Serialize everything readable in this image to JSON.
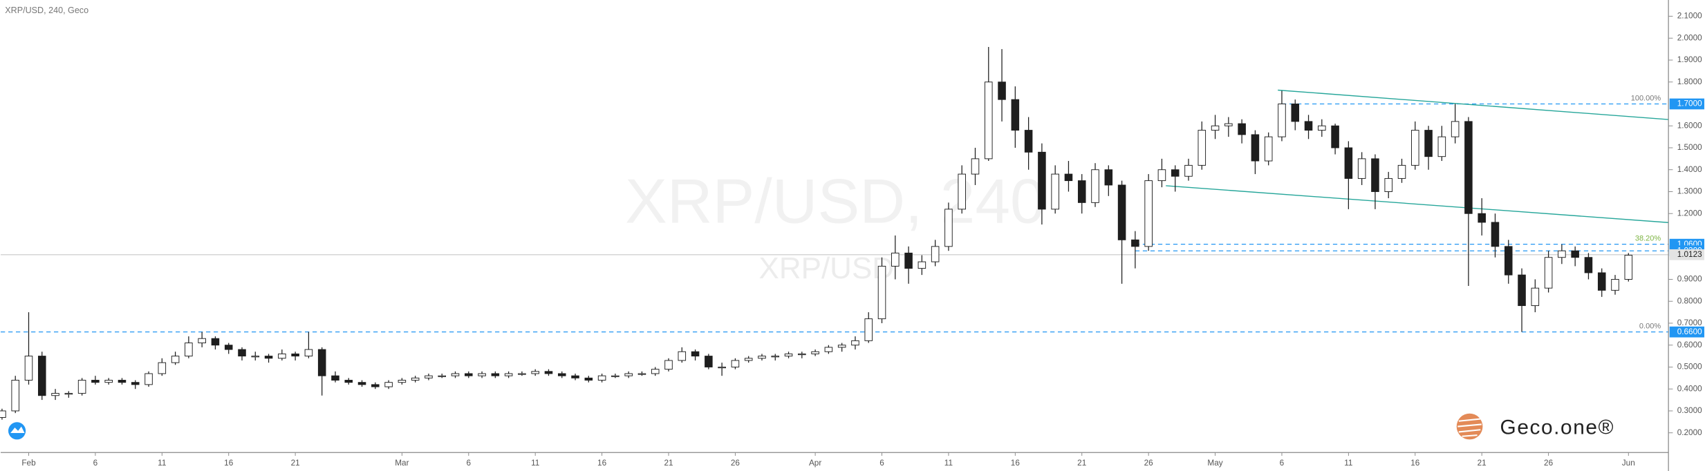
{
  "chart_data": {
    "type": "candlestick",
    "title": "XRP/USD, 240, Geco",
    "watermark": "XRP/USD, 240",
    "watermark_small": "XRP/USD",
    "brand": "Geco.one®",
    "up_color": "#ffffff",
    "down_color": "#1e1e1e",
    "wick_color": "#1e1e1e",
    "level_color": "#2196f3",
    "channel_color": "#26a69a",
    "xlim": [
      -2.1,
      123
    ],
    "ylim": [
      0.11,
      2.174
    ],
    "xticks": [
      {
        "value": 0,
        "label": "Feb"
      },
      {
        "value": 5,
        "label": "6"
      },
      {
        "value": 10,
        "label": "11"
      },
      {
        "value": 15,
        "label": "16"
      },
      {
        "value": 20,
        "label": "21"
      },
      {
        "value": 28,
        "label": "Mar"
      },
      {
        "value": 33,
        "label": "6"
      },
      {
        "value": 38,
        "label": "11"
      },
      {
        "value": 43,
        "label": "16"
      },
      {
        "value": 48,
        "label": "21"
      },
      {
        "value": 53,
        "label": "26"
      },
      {
        "value": 59,
        "label": "Apr"
      },
      {
        "value": 64,
        "label": "6"
      },
      {
        "value": 69,
        "label": "11"
      },
      {
        "value": 74,
        "label": "16"
      },
      {
        "value": 79,
        "label": "21"
      },
      {
        "value": 84,
        "label": "26"
      },
      {
        "value": 89,
        "label": "May"
      },
      {
        "value": 94,
        "label": "6"
      },
      {
        "value": 99,
        "label": "11"
      },
      {
        "value": 104,
        "label": "16"
      },
      {
        "value": 109,
        "label": "21"
      },
      {
        "value": 114,
        "label": "26"
      },
      {
        "value": 120,
        "label": "Jun"
      }
    ],
    "yticks": [
      {
        "value": 2.1,
        "label": "2.1000"
      },
      {
        "value": 2.0,
        "label": "2.0000"
      },
      {
        "value": 1.9,
        "label": "1.9000"
      },
      {
        "value": 1.8,
        "label": "1.8000"
      },
      {
        "value": 1.6,
        "label": "1.6000"
      },
      {
        "value": 1.5,
        "label": "1.5000"
      },
      {
        "value": 1.4,
        "label": "1.4000"
      },
      {
        "value": 1.3,
        "label": "1.3000"
      },
      {
        "value": 1.2,
        "label": "1.2000"
      },
      {
        "value": 0.9,
        "label": "0.9000"
      },
      {
        "value": 0.8,
        "label": "0.8000"
      },
      {
        "value": 0.7,
        "label": "0.7000"
      },
      {
        "value": 0.6,
        "label": "0.6000"
      },
      {
        "value": 0.5,
        "label": "0.5000"
      },
      {
        "value": 0.4,
        "label": "0.4000"
      },
      {
        "value": 0.3,
        "label": "0.3000"
      },
      {
        "value": 0.2,
        "label": "0.2000"
      }
    ],
    "current_price": {
      "value": 1.0123,
      "label": "1.0123"
    },
    "levels": [
      {
        "value": 1.7,
        "label": "1.7000",
        "fib": "100.00%",
        "from": 94
      },
      {
        "value": 1.06,
        "label": "1.0600",
        "fib": "38.20%",
        "from": 83
      },
      {
        "value": 1.03,
        "label": "1.0300",
        "from": 83
      },
      {
        "value": 0.66,
        "label": "0.6600",
        "fib": "0.00%",
        "from": -2.1
      }
    ],
    "channel": [
      {
        "x": [
          93.7,
          123
        ],
        "y": [
          1.763,
          1.629
        ]
      },
      {
        "x": [
          85.3,
          123
        ],
        "y": [
          1.327,
          1.159
        ]
      }
    ],
    "x": [
      -2,
      -1,
      0,
      1,
      2,
      3,
      4,
      5,
      6,
      7,
      8,
      9,
      10,
      11,
      12,
      13,
      14,
      15,
      16,
      17,
      18,
      19,
      20,
      21,
      22,
      23,
      24,
      25,
      26,
      27,
      28,
      29,
      30,
      31,
      32,
      33,
      34,
      35,
      36,
      37,
      38,
      39,
      40,
      41,
      42,
      43,
      44,
      45,
      46,
      47,
      48,
      49,
      50,
      51,
      52,
      53,
      54,
      55,
      56,
      57,
      58,
      59,
      60,
      61,
      62,
      63,
      64,
      65,
      66,
      67,
      68,
      69,
      70,
      71,
      72,
      73,
      74,
      75,
      76,
      77,
      78,
      79,
      80,
      81,
      82,
      83,
      84,
      85,
      86,
      87,
      88,
      89,
      90,
      91,
      92,
      93,
      94,
      95,
      96,
      97,
      98,
      99,
      100,
      101,
      102,
      103,
      104,
      105,
      106,
      107,
      108,
      109,
      110,
      111,
      112,
      113,
      114,
      115,
      116,
      117,
      118,
      119,
      120
    ],
    "ohlc": [
      [
        0.27,
        0.31,
        0.26,
        0.3
      ],
      [
        0.3,
        0.46,
        0.29,
        0.44
      ],
      [
        0.44,
        0.75,
        0.42,
        0.55
      ],
      [
        0.55,
        0.57,
        0.35,
        0.37
      ],
      [
        0.37,
        0.4,
        0.35,
        0.38
      ],
      [
        0.38,
        0.39,
        0.36,
        0.38
      ],
      [
        0.38,
        0.45,
        0.37,
        0.44
      ],
      [
        0.44,
        0.46,
        0.42,
        0.43
      ],
      [
        0.43,
        0.45,
        0.42,
        0.44
      ],
      [
        0.44,
        0.45,
        0.42,
        0.43
      ],
      [
        0.43,
        0.44,
        0.4,
        0.42
      ],
      [
        0.42,
        0.48,
        0.41,
        0.47
      ],
      [
        0.47,
        0.54,
        0.46,
        0.52
      ],
      [
        0.52,
        0.57,
        0.51,
        0.55
      ],
      [
        0.55,
        0.64,
        0.54,
        0.61
      ],
      [
        0.61,
        0.66,
        0.59,
        0.63
      ],
      [
        0.63,
        0.64,
        0.58,
        0.6
      ],
      [
        0.6,
        0.61,
        0.56,
        0.58
      ],
      [
        0.58,
        0.59,
        0.53,
        0.55
      ],
      [
        0.55,
        0.57,
        0.53,
        0.55
      ],
      [
        0.55,
        0.56,
        0.52,
        0.54
      ],
      [
        0.54,
        0.58,
        0.53,
        0.56
      ],
      [
        0.56,
        0.57,
        0.53,
        0.55
      ],
      [
        0.55,
        0.66,
        0.54,
        0.58
      ],
      [
        0.58,
        0.59,
        0.37,
        0.46
      ],
      [
        0.46,
        0.48,
        0.43,
        0.44
      ],
      [
        0.44,
        0.45,
        0.42,
        0.43
      ],
      [
        0.43,
        0.44,
        0.41,
        0.42
      ],
      [
        0.42,
        0.43,
        0.4,
        0.41
      ],
      [
        0.41,
        0.44,
        0.4,
        0.43
      ],
      [
        0.43,
        0.45,
        0.42,
        0.44
      ],
      [
        0.44,
        0.46,
        0.43,
        0.45
      ],
      [
        0.45,
        0.47,
        0.44,
        0.46
      ],
      [
        0.46,
        0.47,
        0.45,
        0.46
      ],
      [
        0.46,
        0.48,
        0.45,
        0.47
      ],
      [
        0.47,
        0.48,
        0.45,
        0.46
      ],
      [
        0.46,
        0.48,
        0.45,
        0.47
      ],
      [
        0.47,
        0.48,
        0.45,
        0.46
      ],
      [
        0.46,
        0.48,
        0.45,
        0.47
      ],
      [
        0.47,
        0.48,
        0.46,
        0.47
      ],
      [
        0.47,
        0.49,
        0.46,
        0.48
      ],
      [
        0.48,
        0.49,
        0.46,
        0.47
      ],
      [
        0.47,
        0.48,
        0.45,
        0.46
      ],
      [
        0.46,
        0.47,
        0.44,
        0.45
      ],
      [
        0.45,
        0.46,
        0.43,
        0.44
      ],
      [
        0.44,
        0.47,
        0.43,
        0.46
      ],
      [
        0.46,
        0.47,
        0.45,
        0.46
      ],
      [
        0.46,
        0.48,
        0.45,
        0.47
      ],
      [
        0.47,
        0.48,
        0.46,
        0.47
      ],
      [
        0.47,
        0.5,
        0.46,
        0.49
      ],
      [
        0.49,
        0.54,
        0.48,
        0.53
      ],
      [
        0.53,
        0.59,
        0.52,
        0.57
      ],
      [
        0.57,
        0.58,
        0.53,
        0.55
      ],
      [
        0.55,
        0.56,
        0.49,
        0.5
      ],
      [
        0.5,
        0.52,
        0.46,
        0.5
      ],
      [
        0.5,
        0.54,
        0.49,
        0.53
      ],
      [
        0.53,
        0.55,
        0.52,
        0.54
      ],
      [
        0.54,
        0.56,
        0.53,
        0.55
      ],
      [
        0.55,
        0.56,
        0.53,
        0.55
      ],
      [
        0.55,
        0.57,
        0.54,
        0.56
      ],
      [
        0.56,
        0.57,
        0.54,
        0.56
      ],
      [
        0.56,
        0.58,
        0.55,
        0.57
      ],
      [
        0.57,
        0.6,
        0.56,
        0.59
      ],
      [
        0.59,
        0.61,
        0.57,
        0.6
      ],
      [
        0.6,
        0.64,
        0.58,
        0.62
      ],
      [
        0.62,
        0.75,
        0.61,
        0.72
      ],
      [
        0.72,
        1.0,
        0.7,
        0.96
      ],
      [
        0.96,
        1.1,
        0.9,
        1.02
      ],
      [
        1.02,
        1.05,
        0.88,
        0.95
      ],
      [
        0.95,
        1.01,
        0.92,
        0.98
      ],
      [
        0.98,
        1.08,
        0.96,
        1.05
      ],
      [
        1.05,
        1.25,
        1.03,
        1.22
      ],
      [
        1.22,
        1.42,
        1.2,
        1.38
      ],
      [
        1.38,
        1.5,
        1.33,
        1.45
      ],
      [
        1.45,
        1.96,
        1.44,
        1.8
      ],
      [
        1.8,
        1.95,
        1.62,
        1.72
      ],
      [
        1.72,
        1.78,
        1.5,
        1.58
      ],
      [
        1.58,
        1.64,
        1.4,
        1.48
      ],
      [
        1.48,
        1.52,
        1.15,
        1.22
      ],
      [
        1.22,
        1.42,
        1.2,
        1.38
      ],
      [
        1.38,
        1.44,
        1.3,
        1.35
      ],
      [
        1.35,
        1.38,
        1.2,
        1.25
      ],
      [
        1.25,
        1.43,
        1.23,
        1.4
      ],
      [
        1.4,
        1.42,
        1.28,
        1.33
      ],
      [
        1.33,
        1.35,
        0.88,
        1.08
      ],
      [
        1.08,
        1.12,
        0.95,
        1.05
      ],
      [
        1.05,
        1.38,
        1.03,
        1.35
      ],
      [
        1.35,
        1.45,
        1.32,
        1.4
      ],
      [
        1.4,
        1.42,
        1.3,
        1.37
      ],
      [
        1.37,
        1.45,
        1.35,
        1.42
      ],
      [
        1.42,
        1.62,
        1.4,
        1.58
      ],
      [
        1.58,
        1.65,
        1.54,
        1.6
      ],
      [
        1.6,
        1.64,
        1.55,
        1.61
      ],
      [
        1.61,
        1.63,
        1.52,
        1.56
      ],
      [
        1.56,
        1.58,
        1.38,
        1.44
      ],
      [
        1.44,
        1.57,
        1.42,
        1.55
      ],
      [
        1.55,
        1.76,
        1.53,
        1.7
      ],
      [
        1.7,
        1.72,
        1.58,
        1.62
      ],
      [
        1.62,
        1.65,
        1.54,
        1.58
      ],
      [
        1.58,
        1.63,
        1.55,
        1.6
      ],
      [
        1.6,
        1.61,
        1.47,
        1.5
      ],
      [
        1.5,
        1.53,
        1.22,
        1.36
      ],
      [
        1.36,
        1.48,
        1.33,
        1.45
      ],
      [
        1.45,
        1.47,
        1.22,
        1.3
      ],
      [
        1.3,
        1.39,
        1.27,
        1.36
      ],
      [
        1.36,
        1.45,
        1.34,
        1.42
      ],
      [
        1.42,
        1.62,
        1.4,
        1.58
      ],
      [
        1.58,
        1.6,
        1.4,
        1.46
      ],
      [
        1.46,
        1.6,
        1.44,
        1.55
      ],
      [
        1.55,
        1.7,
        1.52,
        1.62
      ],
      [
        1.62,
        1.64,
        0.87,
        1.2
      ],
      [
        1.2,
        1.27,
        1.1,
        1.16
      ],
      [
        1.16,
        1.2,
        1.0,
        1.05
      ],
      [
        1.05,
        1.08,
        0.88,
        0.92
      ],
      [
        0.92,
        0.95,
        0.66,
        0.78
      ],
      [
        0.78,
        0.9,
        0.75,
        0.86
      ],
      [
        0.86,
        1.03,
        0.84,
        1.0
      ],
      [
        1.0,
        1.06,
        0.97,
        1.03
      ],
      [
        1.03,
        1.05,
        0.96,
        1.0
      ],
      [
        1.0,
        1.02,
        0.9,
        0.93
      ],
      [
        0.93,
        0.95,
        0.82,
        0.85
      ],
      [
        0.85,
        0.92,
        0.83,
        0.9
      ],
      [
        0.9,
        1.02,
        0.89,
        1.01
      ]
    ]
  }
}
